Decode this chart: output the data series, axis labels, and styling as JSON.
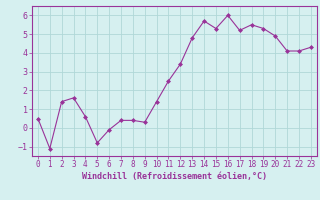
{
  "x": [
    0,
    1,
    2,
    3,
    4,
    5,
    6,
    7,
    8,
    9,
    10,
    11,
    12,
    13,
    14,
    15,
    16,
    17,
    18,
    19,
    20,
    21,
    22,
    23
  ],
  "y": [
    0.5,
    -1.1,
    1.4,
    1.6,
    0.6,
    -0.8,
    -0.1,
    0.4,
    0.4,
    0.3,
    1.4,
    2.5,
    3.4,
    4.8,
    5.7,
    5.3,
    6.0,
    5.2,
    5.5,
    5.3,
    4.9,
    4.1,
    4.1,
    4.3
  ],
  "line_color": "#993399",
  "marker": "D",
  "marker_size": 2,
  "bg_color": "#d6f0f0",
  "grid_color": "#b0d8d8",
  "xlabel": "Windchill (Refroidissement éolien,°C)",
  "xlabel_color": "#993399",
  "tick_color": "#993399",
  "spine_color": "#993399",
  "ylim": [
    -1.5,
    6.5
  ],
  "xlim": [
    -0.5,
    23.5
  ],
  "yticks": [
    -1,
    0,
    1,
    2,
    3,
    4,
    5,
    6
  ],
  "xticks": [
    0,
    1,
    2,
    3,
    4,
    5,
    6,
    7,
    8,
    9,
    10,
    11,
    12,
    13,
    14,
    15,
    16,
    17,
    18,
    19,
    20,
    21,
    22,
    23
  ],
  "tick_fontsize": 5.5,
  "xlabel_fontsize": 6.0
}
